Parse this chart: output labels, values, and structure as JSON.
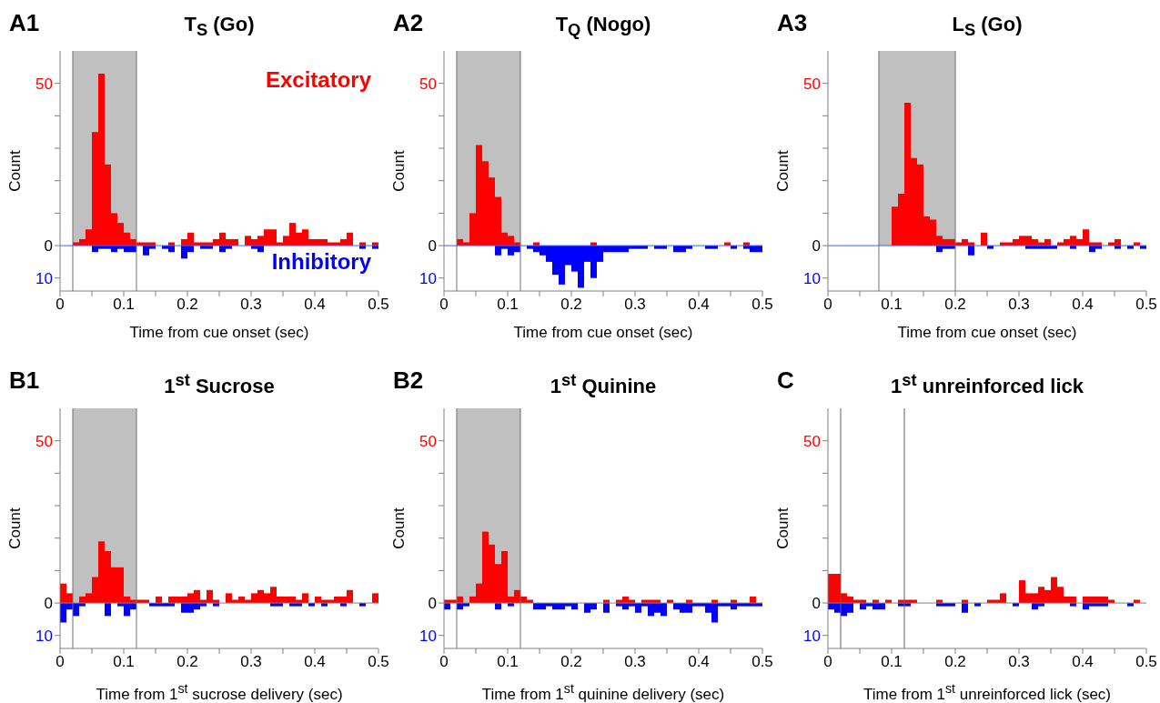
{
  "chart_data": [
    {
      "type": "histogram",
      "title": "T$_{S}$ (Go)",
      "xlabel": "Time from cue onset (sec)",
      "ylabel": "Count",
      "annotations": [
        "A1"
      ],
      "bins": [
        0,
        0.01,
        0.02,
        0.03,
        0.04,
        0.05,
        0.06,
        0.07,
        0.08,
        0.09,
        0.1,
        0.11,
        0.12,
        0.13,
        0.14,
        0.15,
        0.16,
        0.17,
        0.18,
        0.19,
        0.2,
        0.21,
        0.22,
        0.23,
        0.24,
        0.25,
        0.26,
        0.27,
        0.28,
        0.29,
        0.3,
        0.31,
        0.32,
        0.33,
        0.34,
        0.35,
        0.36,
        0.37,
        0.38,
        0.39,
        0.4,
        0.41,
        0.42,
        0.43,
        0.44,
        0.45,
        0.46,
        0.47,
        0.48,
        0.49,
        0.5
      ],
      "series": [
        {
          "name": "Excitatory",
          "color": "#ff0000",
          "values": [
            0,
            0,
            1,
            2,
            5,
            35,
            53,
            25,
            10,
            7,
            4,
            2,
            1,
            1,
            1,
            0,
            0,
            1,
            0,
            2,
            4,
            1,
            1,
            1,
            2,
            4,
            2,
            2,
            0,
            3,
            2,
            3,
            5,
            5,
            1,
            3,
            7,
            4,
            5,
            2,
            2,
            2,
            1,
            1,
            2,
            4,
            0,
            1,
            0,
            1
          ]
        },
        {
          "name": "Inhibitory",
          "color": "#0000ff",
          "values": [
            0,
            0,
            0,
            0,
            0,
            -2,
            -1,
            -1,
            -2,
            -1,
            -2,
            -2,
            0,
            -3,
            -1,
            0,
            -1,
            -2,
            0,
            -4,
            -2,
            0,
            -1,
            -1,
            0,
            -2,
            -1,
            0,
            0,
            0,
            -1,
            -2,
            0,
            0,
            0,
            0,
            0,
            0,
            0,
            0,
            0,
            0,
            0,
            0,
            0,
            0,
            0,
            -1,
            0,
            -1
          ]
        }
      ],
      "xlim": [
        0,
        0.5
      ],
      "xticks": [
        {
          "value": 0,
          "label": "0"
        },
        {
          "value": 0.05,
          "label": null
        },
        0.1,
        {
          "value": 0.15,
          "label": null
        },
        0.2,
        {
          "value": 0.25,
          "label": null
        },
        0.3,
        {
          "value": 0.35,
          "label": null
        },
        0.4,
        {
          "value": 0.45,
          "label": null
        },
        0.5
      ],
      "ylim": [
        -14,
        60
      ],
      "yticks": [
        {
          "value": -10,
          "label": "10"
        },
        {
          "value": 0,
          "label": "0"
        },
        {
          "value": 10,
          "label": null
        },
        {
          "value": 20,
          "label": null
        },
        {
          "value": 30,
          "label": null
        },
        {
          "value": 40,
          "label": null
        },
        {
          "value": 50,
          "label": "50"
        }
      ],
      "bands": [
        {
          "axis": "x",
          "from": 0.02,
          "to": 0.12,
          "color": "#c0c0c0"
        }
      ],
      "ref_lines": [
        {
          "axis": "y",
          "value": 0,
          "color": "#4060ff"
        },
        {
          "axis": "x",
          "value": 0.02,
          "color": "#707070"
        },
        {
          "axis": "x",
          "value": 0.12,
          "color": "#707070"
        }
      ]
    },
    {
      "type": "histogram",
      "title": "T$_{Q}$ (Nogo)",
      "xlabel": "Time from cue onset (sec)",
      "ylabel": "Count",
      "annotations": [
        "A2"
      ],
      "bins": [
        0,
        0.01,
        0.02,
        0.03,
        0.04,
        0.05,
        0.06,
        0.07,
        0.08,
        0.09,
        0.1,
        0.11,
        0.12,
        0.13,
        0.14,
        0.15,
        0.16,
        0.17,
        0.18,
        0.19,
        0.2,
        0.21,
        0.22,
        0.23,
        0.24,
        0.25,
        0.26,
        0.27,
        0.28,
        0.29,
        0.3,
        0.31,
        0.32,
        0.33,
        0.34,
        0.35,
        0.36,
        0.37,
        0.38,
        0.39,
        0.4,
        0.41,
        0.42,
        0.43,
        0.44,
        0.45,
        0.46,
        0.47,
        0.48,
        0.49,
        0.5
      ],
      "series": [
        {
          "color": "#ff0000",
          "values": [
            0,
            0,
            2,
            1,
            10,
            31,
            26,
            21,
            15,
            4,
            3,
            1,
            0,
            0,
            1,
            0,
            0,
            0,
            0,
            0,
            0,
            0,
            0,
            1,
            0,
            0,
            0,
            0,
            0,
            0,
            0,
            0,
            0,
            0,
            0,
            0,
            0,
            0,
            0,
            0,
            0,
            0,
            0,
            0,
            1,
            0,
            0,
            1,
            0,
            0
          ]
        },
        {
          "color": "#0000ff",
          "values": [
            0,
            0,
            0,
            0,
            0,
            0,
            0,
            0,
            -3,
            -1,
            -3,
            -2,
            0,
            -1,
            -2,
            -3,
            -5,
            -9,
            -12,
            -6,
            -8,
            -13,
            -5,
            -10,
            -5,
            -2,
            -2,
            -2,
            -2,
            -1,
            -1,
            -1,
            0,
            -1,
            -1,
            0,
            -2,
            -2,
            -1,
            0,
            0,
            -1,
            -1,
            0,
            0,
            -1,
            0,
            -1,
            -2,
            -2
          ]
        }
      ],
      "xlim": [
        0,
        0.5
      ],
      "xticks": [
        {
          "value": 0,
          "label": "0"
        },
        {
          "value": 0.05,
          "label": null
        },
        0.1,
        {
          "value": 0.15,
          "label": null
        },
        0.2,
        {
          "value": 0.25,
          "label": null
        },
        0.3,
        {
          "value": 0.35,
          "label": null
        },
        0.4,
        {
          "value": 0.45,
          "label": null
        },
        0.5
      ],
      "ylim": [
        -14,
        60
      ],
      "yticks": [
        {
          "value": -10,
          "label": "10"
        },
        {
          "value": 0,
          "label": "0"
        },
        {
          "value": 10,
          "label": null
        },
        {
          "value": 20,
          "label": null
        },
        {
          "value": 30,
          "label": null
        },
        {
          "value": 40,
          "label": null
        },
        {
          "value": 50,
          "label": "50"
        }
      ],
      "bands": [
        {
          "axis": "x",
          "from": 0.02,
          "to": 0.12,
          "color": "#c0c0c0"
        }
      ],
      "ref_lines": [
        {
          "axis": "y",
          "value": 0,
          "color": "#4060ff"
        },
        {
          "axis": "x",
          "value": 0.02,
          "color": "#707070"
        },
        {
          "axis": "x",
          "value": 0.12,
          "color": "#707070"
        }
      ]
    },
    {
      "type": "histogram",
      "title": "L$_{S}$ (Go)",
      "xlabel": "Time from cue onset (sec)",
      "ylabel": "Count",
      "annotations": [
        "A3"
      ],
      "bins": [
        0,
        0.01,
        0.02,
        0.03,
        0.04,
        0.05,
        0.06,
        0.07,
        0.08,
        0.09,
        0.1,
        0.11,
        0.12,
        0.13,
        0.14,
        0.15,
        0.16,
        0.17,
        0.18,
        0.19,
        0.2,
        0.21,
        0.22,
        0.23,
        0.24,
        0.25,
        0.26,
        0.27,
        0.28,
        0.29,
        0.3,
        0.31,
        0.32,
        0.33,
        0.34,
        0.35,
        0.36,
        0.37,
        0.38,
        0.39,
        0.4,
        0.41,
        0.42,
        0.43,
        0.44,
        0.45,
        0.46,
        0.47,
        0.48,
        0.49,
        0.5
      ],
      "series": [
        {
          "color": "#ff0000",
          "values": [
            0,
            0,
            0,
            0,
            0,
            0,
            0,
            0,
            0,
            0,
            12,
            16,
            44,
            27,
            25,
            9,
            8,
            3,
            2,
            2,
            1,
            2,
            1,
            0,
            4,
            0,
            0,
            1,
            1,
            2,
            3,
            3,
            2,
            1,
            2,
            0,
            1,
            2,
            3,
            2,
            5,
            1,
            1,
            0,
            1,
            2,
            0,
            0,
            1,
            0
          ]
        },
        {
          "color": "#0000ff",
          "values": [
            0,
            0,
            0,
            0,
            0,
            0,
            0,
            0,
            0,
            0,
            0,
            0,
            0,
            0,
            0,
            0,
            0,
            -2,
            -1,
            -1,
            0,
            0,
            -3,
            0,
            0,
            -1,
            0,
            0,
            0,
            0,
            0,
            -1,
            -1,
            -1,
            -1,
            -1,
            0,
            0,
            -1,
            0,
            0,
            -2,
            -1,
            0,
            0,
            -1,
            0,
            -1,
            0,
            -1
          ]
        }
      ],
      "xlim": [
        0,
        0.5
      ],
      "xticks": [
        {
          "value": 0,
          "label": "0"
        },
        {
          "value": 0.05,
          "label": null
        },
        0.1,
        {
          "value": 0.15,
          "label": null
        },
        0.2,
        {
          "value": 0.25,
          "label": null
        },
        0.3,
        {
          "value": 0.35,
          "label": null
        },
        0.4,
        {
          "value": 0.45,
          "label": null
        },
        0.5
      ],
      "ylim": [
        -14,
        60
      ],
      "yticks": [
        {
          "value": -10,
          "label": "10"
        },
        {
          "value": 0,
          "label": "0"
        },
        {
          "value": 10,
          "label": null
        },
        {
          "value": 20,
          "label": null
        },
        {
          "value": 30,
          "label": null
        },
        {
          "value": 40,
          "label": null
        },
        {
          "value": 50,
          "label": "50"
        }
      ],
      "bands": [
        {
          "axis": "x",
          "from": 0.08,
          "to": 0.2,
          "color": "#c0c0c0"
        }
      ],
      "ref_lines": [
        {
          "axis": "y",
          "value": 0,
          "color": "#4060ff"
        },
        {
          "axis": "x",
          "value": 0.08,
          "color": "#707070"
        },
        {
          "axis": "x",
          "value": 0.2,
          "color": "#707070"
        }
      ]
    },
    {
      "type": "histogram",
      "title": "1$^{st}$ Sucrose",
      "xlabel": "Time from 1$^{st}$ sucrose delivery (sec)",
      "ylabel": "Count",
      "annotations": [
        "B1"
      ],
      "bins": [
        0,
        0.01,
        0.02,
        0.03,
        0.04,
        0.05,
        0.06,
        0.07,
        0.08,
        0.09,
        0.1,
        0.11,
        0.12,
        0.13,
        0.14,
        0.15,
        0.16,
        0.17,
        0.18,
        0.19,
        0.2,
        0.21,
        0.22,
        0.23,
        0.24,
        0.25,
        0.26,
        0.27,
        0.28,
        0.29,
        0.3,
        0.31,
        0.32,
        0.33,
        0.34,
        0.35,
        0.36,
        0.37,
        0.38,
        0.39,
        0.4,
        0.41,
        0.42,
        0.43,
        0.44,
        0.45,
        0.46,
        0.47,
        0.48,
        0.49,
        0.5
      ],
      "series": [
        {
          "color": "#ff0000",
          "values": [
            6,
            3,
            0,
            2,
            3,
            8,
            19,
            16,
            11,
            11,
            2,
            1,
            1,
            1,
            0,
            2,
            0,
            2,
            2,
            2,
            3,
            4,
            1,
            4,
            1,
            0,
            3,
            1,
            2,
            1,
            3,
            4,
            3,
            5,
            2,
            2,
            2,
            1,
            3,
            0,
            2,
            1,
            1,
            2,
            2,
            4,
            0,
            0,
            0,
            3
          ]
        },
        {
          "color": "#0000ff",
          "values": [
            -6,
            -2,
            -4,
            -1,
            0,
            0,
            0,
            -4,
            0,
            -1,
            -4,
            -2,
            0,
            0,
            -1,
            -1,
            -1,
            -1,
            0,
            -3,
            -3,
            -2,
            -1,
            0,
            -1,
            0,
            0,
            0,
            0,
            0,
            0,
            0,
            0,
            -1,
            -1,
            0,
            -1,
            -1,
            0,
            -1,
            0,
            -1,
            0,
            0,
            -1,
            0,
            0,
            -1,
            0,
            0
          ]
        }
      ],
      "xlim": [
        0,
        0.5
      ],
      "xticks": [
        {
          "value": 0,
          "label": "0"
        },
        {
          "value": 0.05,
          "label": null
        },
        0.1,
        {
          "value": 0.15,
          "label": null
        },
        0.2,
        {
          "value": 0.25,
          "label": null
        },
        0.3,
        {
          "value": 0.35,
          "label": null
        },
        0.4,
        {
          "value": 0.45,
          "label": null
        },
        0.5
      ],
      "ylim": [
        -14,
        60
      ],
      "yticks": [
        {
          "value": -10,
          "label": "10"
        },
        {
          "value": 0,
          "label": "0"
        },
        {
          "value": 10,
          "label": null
        },
        {
          "value": 20,
          "label": null
        },
        {
          "value": 30,
          "label": null
        },
        {
          "value": 40,
          "label": null
        },
        {
          "value": 50,
          "label": "50"
        }
      ],
      "bands": [
        {
          "axis": "x",
          "from": 0.02,
          "to": 0.12,
          "color": "#c0c0c0"
        }
      ],
      "ref_lines": [
        {
          "axis": "y",
          "value": 0,
          "color": "#808080"
        },
        {
          "axis": "x",
          "value": 0.02,
          "color": "#707070"
        },
        {
          "axis": "x",
          "value": 0.12,
          "color": "#707070"
        }
      ]
    },
    {
      "type": "histogram",
      "title": "1$^{st}$ Quinine",
      "xlabel": "Time from 1$^{st}$ quinine delivery (sec)",
      "ylabel": "Count",
      "annotations": [
        "B2"
      ],
      "bins": [
        0,
        0.01,
        0.02,
        0.03,
        0.04,
        0.05,
        0.06,
        0.07,
        0.08,
        0.09,
        0.1,
        0.11,
        0.12,
        0.13,
        0.14,
        0.15,
        0.16,
        0.17,
        0.18,
        0.19,
        0.2,
        0.21,
        0.22,
        0.23,
        0.24,
        0.25,
        0.26,
        0.27,
        0.28,
        0.29,
        0.3,
        0.31,
        0.32,
        0.33,
        0.34,
        0.35,
        0.36,
        0.37,
        0.38,
        0.39,
        0.4,
        0.41,
        0.42,
        0.43,
        0.44,
        0.45,
        0.46,
        0.47,
        0.48,
        0.49,
        0.5
      ],
      "series": [
        {
          "color": "#ff0000",
          "values": [
            1,
            1,
            2,
            0,
            2,
            6,
            22,
            18,
            12,
            16,
            2,
            4,
            2,
            1,
            0,
            0,
            0,
            0,
            0,
            0,
            0,
            0,
            0,
            0,
            0,
            1,
            0,
            1,
            2,
            1,
            0,
            1,
            1,
            1,
            0,
            1,
            0,
            0,
            1,
            0,
            0,
            0,
            1,
            0,
            0,
            1,
            0,
            0,
            2,
            0
          ]
        },
        {
          "color": "#0000ff",
          "values": [
            -2,
            0,
            -2,
            -1,
            0,
            0,
            0,
            0,
            -2,
            0,
            -1,
            0,
            0,
            0,
            -2,
            -2,
            -1,
            -2,
            -2,
            -1,
            -2,
            0,
            -3,
            -2,
            0,
            -3,
            0,
            -1,
            -2,
            -1,
            -3,
            -1,
            -4,
            -3,
            -4,
            0,
            -2,
            -3,
            -3,
            -1,
            -1,
            -3,
            -6,
            -1,
            -1,
            -2,
            -1,
            -1,
            -1,
            -1
          ]
        }
      ],
      "xlim": [
        0,
        0.5
      ],
      "xticks": [
        {
          "value": 0,
          "label": "0"
        },
        {
          "value": 0.05,
          "label": null
        },
        0.1,
        {
          "value": 0.15,
          "label": null
        },
        0.2,
        {
          "value": 0.25,
          "label": null
        },
        0.3,
        {
          "value": 0.35,
          "label": null
        },
        0.4,
        {
          "value": 0.45,
          "label": null
        },
        0.5
      ],
      "ylim": [
        -14,
        60
      ],
      "yticks": [
        {
          "value": -10,
          "label": "10"
        },
        {
          "value": 0,
          "label": "0"
        },
        {
          "value": 10,
          "label": null
        },
        {
          "value": 20,
          "label": null
        },
        {
          "value": 30,
          "label": null
        },
        {
          "value": 40,
          "label": null
        },
        {
          "value": 50,
          "label": "50"
        }
      ],
      "bands": [
        {
          "axis": "x",
          "from": 0.02,
          "to": 0.12,
          "color": "#c0c0c0"
        }
      ],
      "ref_lines": [
        {
          "axis": "y",
          "value": 0,
          "color": "#808080"
        },
        {
          "axis": "x",
          "value": 0.02,
          "color": "#707070"
        },
        {
          "axis": "x",
          "value": 0.12,
          "color": "#707070"
        }
      ]
    },
    {
      "type": "histogram",
      "title": "1$^{st}$ unreinforced lick",
      "xlabel": "Time from 1$^{st}$ unreinforced lick (sec)",
      "ylabel": "Count",
      "annotations": [
        "C"
      ],
      "bins": [
        0,
        0.01,
        0.02,
        0.03,
        0.04,
        0.05,
        0.06,
        0.07,
        0.08,
        0.09,
        0.1,
        0.11,
        0.12,
        0.13,
        0.14,
        0.15,
        0.16,
        0.17,
        0.18,
        0.19,
        0.2,
        0.21,
        0.22,
        0.23,
        0.24,
        0.25,
        0.26,
        0.27,
        0.28,
        0.29,
        0.3,
        0.31,
        0.32,
        0.33,
        0.34,
        0.35,
        0.36,
        0.37,
        0.38,
        0.39,
        0.4,
        0.41,
        0.42,
        0.43,
        0.44,
        0.45,
        0.46,
        0.47,
        0.48,
        0.49,
        0.5
      ],
      "series": [
        {
          "color": "#ff0000",
          "values": [
            9,
            9,
            3,
            2,
            1,
            1,
            0,
            1,
            0,
            1,
            0,
            1,
            1,
            1,
            0,
            0,
            0,
            1,
            0,
            0,
            0,
            1,
            0,
            0,
            0,
            1,
            1,
            3,
            0,
            0,
            7,
            3,
            3,
            5,
            4,
            8,
            5,
            2,
            2,
            0,
            2,
            2,
            2,
            2,
            1,
            0,
            0,
            0,
            1,
            0
          ]
        },
        {
          "color": "#0000ff",
          "values": [
            -2,
            -3,
            -4,
            -3,
            0,
            -2,
            -1,
            -2,
            -2,
            0,
            0,
            -1,
            -1,
            0,
            0,
            0,
            0,
            -1,
            -1,
            -1,
            0,
            -3,
            0,
            -1,
            0,
            0,
            0,
            0,
            0,
            -1,
            0,
            0,
            -2,
            -1,
            0,
            0,
            0,
            0,
            -1,
            0,
            -2,
            -1,
            -1,
            -1,
            0,
            0,
            0,
            -1,
            0,
            0
          ]
        }
      ],
      "xlim": [
        0,
        0.5
      ],
      "xticks": [
        {
          "value": 0,
          "label": "0"
        },
        {
          "value": 0.05,
          "label": null
        },
        0.1,
        {
          "value": 0.15,
          "label": null
        },
        0.2,
        {
          "value": 0.25,
          "label": null
        },
        0.3,
        {
          "value": 0.35,
          "label": null
        },
        0.4,
        {
          "value": 0.45,
          "label": null
        },
        0.5
      ],
      "ylim": [
        -14,
        60
      ],
      "yticks": [
        {
          "value": -10,
          "label": "10"
        },
        {
          "value": 0,
          "label": "0"
        },
        {
          "value": 10,
          "label": null
        },
        {
          "value": 20,
          "label": null
        },
        {
          "value": 30,
          "label": null
        },
        {
          "value": 40,
          "label": null
        },
        {
          "value": 50,
          "label": "50"
        }
      ],
      "ref_lines": [
        {
          "axis": "y",
          "value": 0,
          "color": "#808080"
        },
        {
          "axis": "x",
          "value": 0.02,
          "color": "#606060"
        },
        {
          "axis": "x",
          "value": 0.12,
          "color": "#606060"
        }
      ]
    }
  ]
}
